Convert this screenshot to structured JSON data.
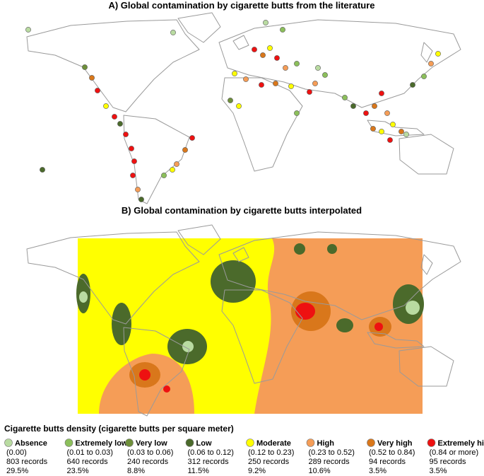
{
  "panel_a": {
    "title": "A) Global contamination by cigarette butts from the literature"
  },
  "panel_b": {
    "title": "B) Global contamination by cigarette butts interpolated"
  },
  "legend": {
    "title": "Cigarette butts density (cigarette butts per square meter)",
    "items": [
      {
        "label": "Absence",
        "range": "(0.00)",
        "records": "803 records",
        "percent": "29.5%",
        "color": "#b9dba1"
      },
      {
        "label": "Extremely low",
        "range": "(0.01 to 0.03)",
        "records": "640 records",
        "percent": "23.5%",
        "color": "#8cbf5b"
      },
      {
        "label": "Very low",
        "range": "(0.03 to 0.06)",
        "records": "240 records",
        "percent": "8.8%",
        "color": "#6e8f3a"
      },
      {
        "label": "Low",
        "range": "(0.06 to 0.12)",
        "records": "312 records",
        "percent": "11.5%",
        "color": "#4b6a2b"
      },
      {
        "label": "Moderate",
        "range": "(0.12 to 0.23)",
        "records": "250 records",
        "percent": "9.2%",
        "color": "#ffff00"
      },
      {
        "label": "High",
        "range": "(0.23 to 0.52)",
        "records": "289 records",
        "percent": "10.6%",
        "color": "#f59d57"
      },
      {
        "label": "Very high",
        "range": "(0.52 to 0.84)",
        "records": "94 records",
        "percent": "3.5%",
        "color": "#d9771b"
      },
      {
        "label": "Extremely high",
        "range": "(0.84 or more)",
        "records": "95 records",
        "percent": "3.5%",
        "color": "#ee1111"
      }
    ]
  }
}
